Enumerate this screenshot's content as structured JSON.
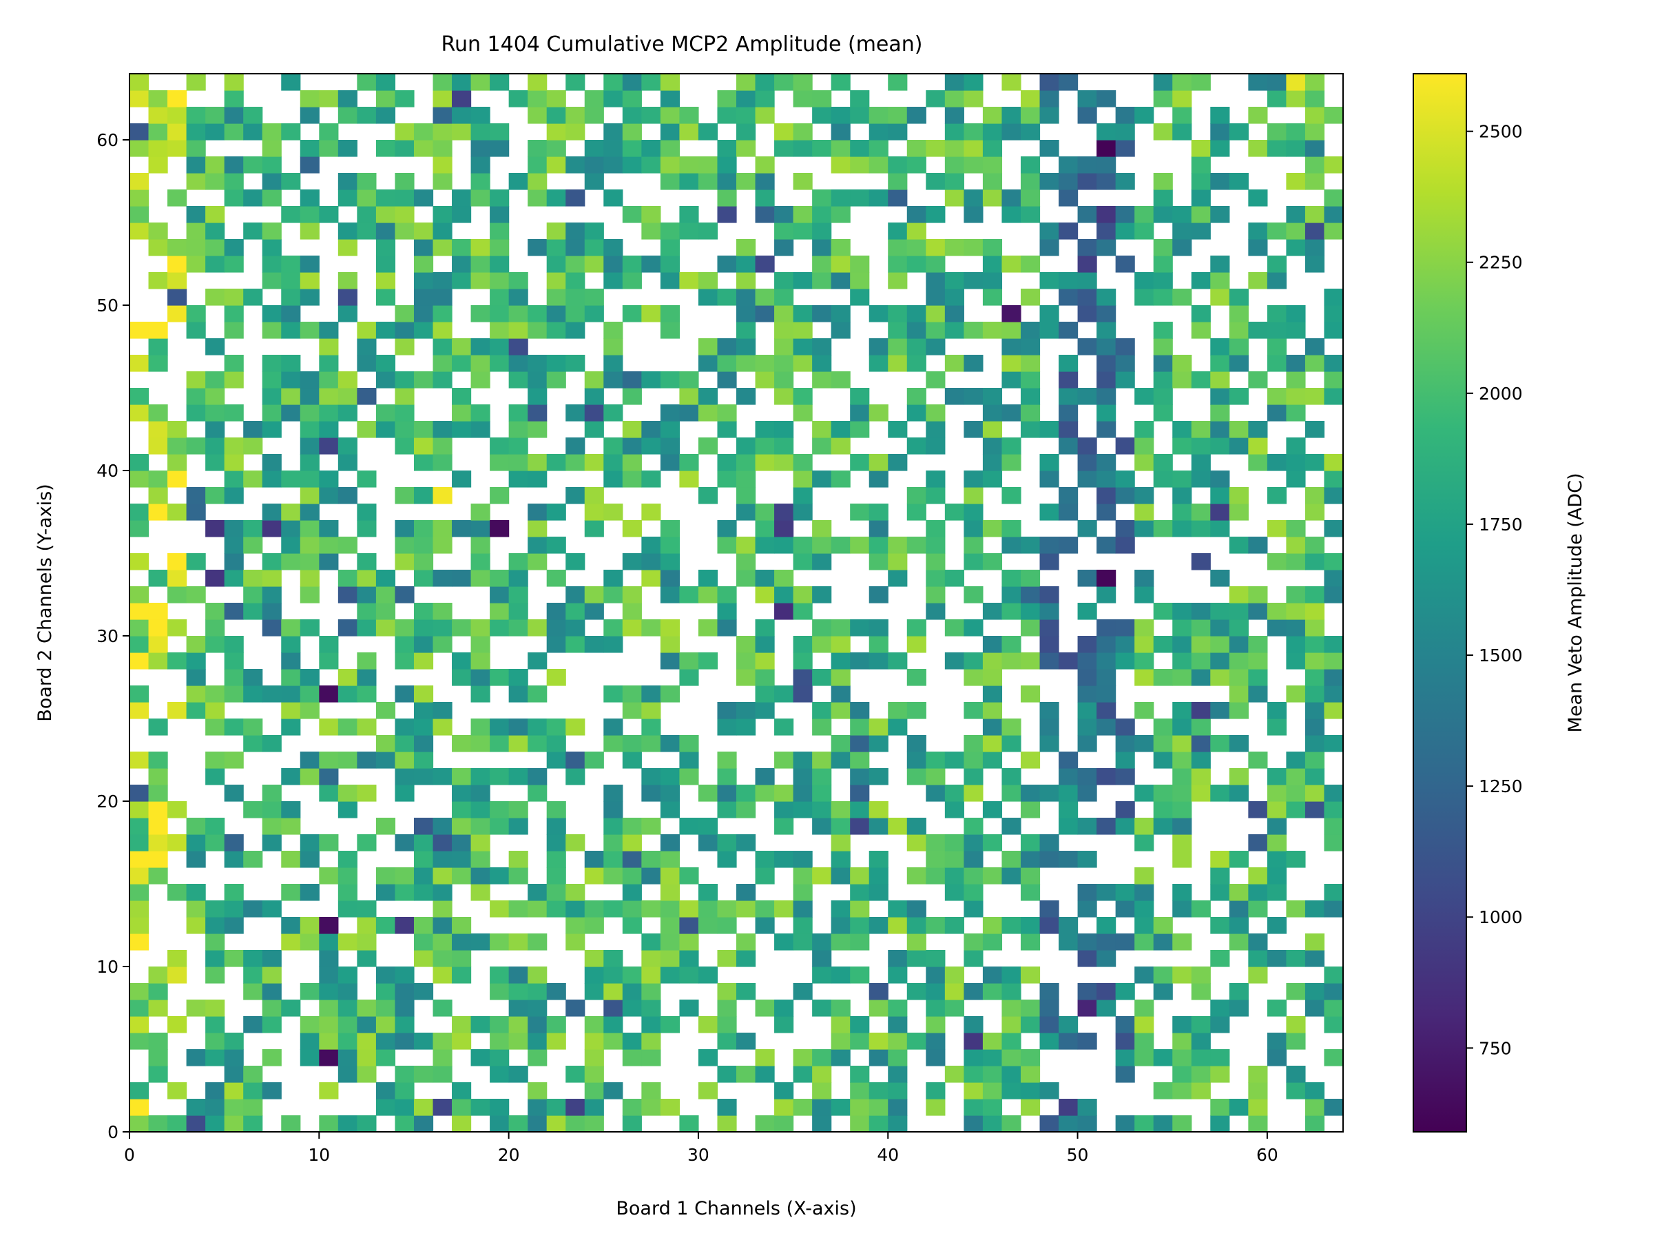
{
  "chart_data": {
    "type": "heatmap",
    "title": "Run 1404 Cumulative MCP2 Amplitude (mean)",
    "xlabel": "Board 1 Channels (X-axis)",
    "ylabel": "Board 2 Channels (Y-axis)",
    "colorbar_label": "Mean Veto Amplitude (ADC)",
    "colormap": "viridis",
    "xlim": [
      0,
      64
    ],
    "ylim": [
      0,
      64
    ],
    "x_ticks": [
      0,
      10,
      20,
      30,
      40,
      50,
      60
    ],
    "y_ticks": [
      0,
      10,
      20,
      30,
      40,
      50,
      60
    ],
    "color_range": [
      590,
      2610
    ],
    "colorbar_ticks": [
      750,
      1000,
      1250,
      1500,
      1750,
      2000,
      2250,
      2500
    ],
    "grid": false,
    "empty_cells": "white (no data)",
    "columns_total": 64,
    "rows_total": 64,
    "notable_features": [
      {
        "x_channel_range": [
          48,
          52
        ],
        "y_channel_range": [
          0,
          64
        ],
        "mean_amplitude_approx": 1400,
        "description": "vertical low-amplitude band"
      },
      {
        "x_channel_range": [
          0,
          3
        ],
        "y_channel_range": [
          0,
          64
        ],
        "mean_amplitude_approx": 2450,
        "description": "high-amplitude column"
      }
    ],
    "sample_cells": [
      {
        "x": 51,
        "y": 59,
        "value": 600
      },
      {
        "x": 51,
        "y": 33,
        "value": 620
      },
      {
        "x": 19,
        "y": 36,
        "value": 640
      },
      {
        "x": 10,
        "y": 26,
        "value": 650
      },
      {
        "x": 10,
        "y": 12,
        "value": 660
      },
      {
        "x": 10,
        "y": 4,
        "value": 650
      },
      {
        "x": 46,
        "y": 49,
        "value": 700
      },
      {
        "x": 34,
        "y": 31,
        "value": 850
      },
      {
        "x": 4,
        "y": 36,
        "value": 900
      },
      {
        "x": 50,
        "y": 7,
        "value": 800
      },
      {
        "x": 0,
        "y": 57,
        "value": 2500
      },
      {
        "x": 0,
        "y": 46,
        "value": 2480
      },
      {
        "x": 0,
        "y": 15,
        "value": 2520
      },
      {
        "x": 2,
        "y": 60,
        "value": 2500
      },
      {
        "x": 61,
        "y": 63,
        "value": 2550
      },
      {
        "x": 16,
        "y": 38,
        "value": 2580
      },
      {
        "x": 49,
        "y": 43,
        "value": 1300
      },
      {
        "x": 49,
        "y": 37,
        "value": 1350
      },
      {
        "x": 50,
        "y": 28,
        "value": 1250
      },
      {
        "x": 30,
        "y": 47,
        "value": 2200
      }
    ]
  }
}
